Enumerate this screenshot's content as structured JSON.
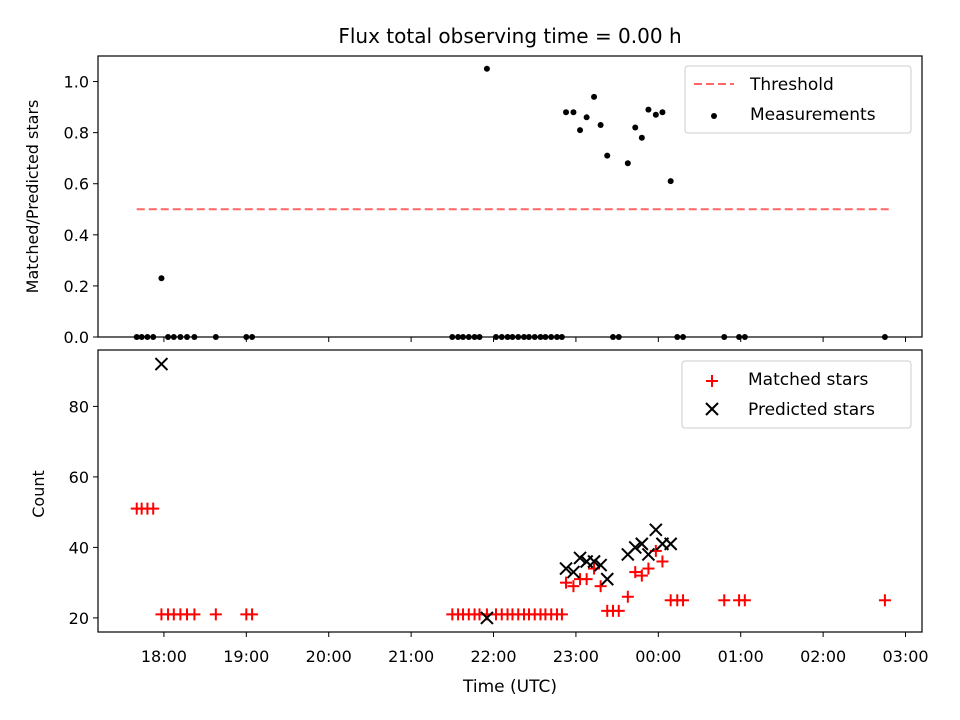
{
  "chart_data": [
    {
      "type": "scatter",
      "title": "Flux total observing time = 0.00 h",
      "xlabel": "",
      "ylabel": "Matched/Predicted stars",
      "xlim": [
        17.2,
        27.2
      ],
      "ylim": [
        0,
        1.1
      ],
      "yticks": [
        0.0,
        0.2,
        0.4,
        0.6,
        0.8,
        1.0
      ],
      "ytick_labels": [
        "0.0",
        "0.2",
        "0.4",
        "0.6",
        "0.8",
        "1.0"
      ],
      "legend_position": "upper right",
      "legend": [
        "Threshold",
        "Measurements"
      ],
      "threshold": {
        "name": "Threshold",
        "y": 0.5,
        "x_range": [
          17.67,
          26.8
        ],
        "color": "#ff6666",
        "style": "dashed"
      },
      "series": [
        {
          "name": "Measurements",
          "marker": "dot",
          "color": "#000000",
          "points": [
            [
              17.67,
              0
            ],
            [
              17.73,
              0
            ],
            [
              17.8,
              0
            ],
            [
              17.87,
              0
            ],
            [
              17.97,
              0.23
            ],
            [
              18.05,
              0
            ],
            [
              18.12,
              0
            ],
            [
              18.2,
              0
            ],
            [
              18.28,
              0
            ],
            [
              18.37,
              0
            ],
            [
              18.63,
              0
            ],
            [
              19.0,
              0
            ],
            [
              19.07,
              0
            ],
            [
              21.5,
              0
            ],
            [
              21.57,
              0
            ],
            [
              21.63,
              0
            ],
            [
              21.7,
              0
            ],
            [
              21.77,
              0
            ],
            [
              21.83,
              0
            ],
            [
              21.92,
              1.05
            ],
            [
              22.03,
              0
            ],
            [
              22.1,
              0
            ],
            [
              22.17,
              0
            ],
            [
              22.23,
              0
            ],
            [
              22.3,
              0
            ],
            [
              22.37,
              0
            ],
            [
              22.43,
              0
            ],
            [
              22.5,
              0
            ],
            [
              22.57,
              0
            ],
            [
              22.63,
              0
            ],
            [
              22.7,
              0
            ],
            [
              22.77,
              0
            ],
            [
              22.83,
              0
            ],
            [
              22.88,
              0.88
            ],
            [
              22.97,
              0.88
            ],
            [
              23.05,
              0.81
            ],
            [
              23.13,
              0.86
            ],
            [
              23.22,
              0.94
            ],
            [
              23.3,
              0.83
            ],
            [
              23.38,
              0.71
            ],
            [
              23.45,
              0
            ],
            [
              23.52,
              0
            ],
            [
              23.63,
              0.68
            ],
            [
              23.72,
              0.82
            ],
            [
              23.8,
              0.78
            ],
            [
              23.88,
              0.89
            ],
            [
              23.97,
              0.87
            ],
            [
              24.05,
              0.88
            ],
            [
              24.15,
              0.61
            ],
            [
              24.23,
              0
            ],
            [
              24.3,
              0
            ],
            [
              24.8,
              0
            ],
            [
              24.98,
              0
            ],
            [
              25.05,
              0
            ],
            [
              26.75,
              0
            ]
          ]
        }
      ]
    },
    {
      "type": "scatter",
      "title": "",
      "xlabel": "Time (UTC)",
      "ylabel": "Count",
      "xlim": [
        17.2,
        27.2
      ],
      "ylim": [
        16,
        96
      ],
      "xticks": [
        18,
        19,
        20,
        21,
        22,
        23,
        24,
        25,
        26,
        27
      ],
      "xtick_labels": [
        "18:00",
        "19:00",
        "20:00",
        "21:00",
        "22:00",
        "23:00",
        "00:00",
        "01:00",
        "02:00",
        "03:00"
      ],
      "yticks": [
        20,
        40,
        60,
        80
      ],
      "ytick_labels": [
        "20",
        "40",
        "60",
        "80"
      ],
      "legend_position": "upper right",
      "legend": [
        "Matched stars",
        "Predicted stars"
      ],
      "series": [
        {
          "name": "Matched stars",
          "marker": "plus",
          "color": "#ff0000",
          "points": [
            [
              17.67,
              51
            ],
            [
              17.73,
              51
            ],
            [
              17.8,
              51
            ],
            [
              17.87,
              51
            ],
            [
              17.97,
              21
            ],
            [
              18.05,
              21
            ],
            [
              18.12,
              21
            ],
            [
              18.2,
              21
            ],
            [
              18.28,
              21
            ],
            [
              18.37,
              21
            ],
            [
              18.63,
              21
            ],
            [
              19.0,
              21
            ],
            [
              19.07,
              21
            ],
            [
              21.5,
              21
            ],
            [
              21.57,
              21
            ],
            [
              21.63,
              21
            ],
            [
              21.7,
              21
            ],
            [
              21.77,
              21
            ],
            [
              21.83,
              21
            ],
            [
              21.92,
              21
            ],
            [
              22.03,
              21
            ],
            [
              22.1,
              21
            ],
            [
              22.17,
              21
            ],
            [
              22.23,
              21
            ],
            [
              22.3,
              21
            ],
            [
              22.37,
              21
            ],
            [
              22.43,
              21
            ],
            [
              22.5,
              21
            ],
            [
              22.57,
              21
            ],
            [
              22.63,
              21
            ],
            [
              22.7,
              21
            ],
            [
              22.77,
              21
            ],
            [
              22.83,
              21
            ],
            [
              22.88,
              30
            ],
            [
              22.97,
              29
            ],
            [
              23.05,
              31
            ],
            [
              23.13,
              31
            ],
            [
              23.22,
              34
            ],
            [
              23.3,
              29
            ],
            [
              23.38,
              22
            ],
            [
              23.45,
              22
            ],
            [
              23.52,
              22
            ],
            [
              23.63,
              26
            ],
            [
              23.72,
              33
            ],
            [
              23.8,
              32
            ],
            [
              23.88,
              34
            ],
            [
              23.97,
              39
            ],
            [
              24.05,
              36
            ],
            [
              24.15,
              25
            ],
            [
              24.23,
              25
            ],
            [
              24.3,
              25
            ],
            [
              24.8,
              25
            ],
            [
              24.98,
              25
            ],
            [
              25.05,
              25
            ],
            [
              26.75,
              25
            ]
          ]
        },
        {
          "name": "Predicted stars",
          "marker": "x",
          "color": "#000000",
          "points": [
            [
              17.97,
              92
            ],
            [
              21.92,
              20
            ],
            [
              22.88,
              34
            ],
            [
              22.97,
              33
            ],
            [
              23.05,
              37
            ],
            [
              23.13,
              36
            ],
            [
              23.22,
              36
            ],
            [
              23.3,
              35
            ],
            [
              23.38,
              31
            ],
            [
              23.63,
              38
            ],
            [
              23.72,
              40
            ],
            [
              23.8,
              41
            ],
            [
              23.88,
              38
            ],
            [
              23.97,
              45
            ],
            [
              24.05,
              41
            ],
            [
              24.15,
              41
            ]
          ]
        }
      ]
    }
  ]
}
